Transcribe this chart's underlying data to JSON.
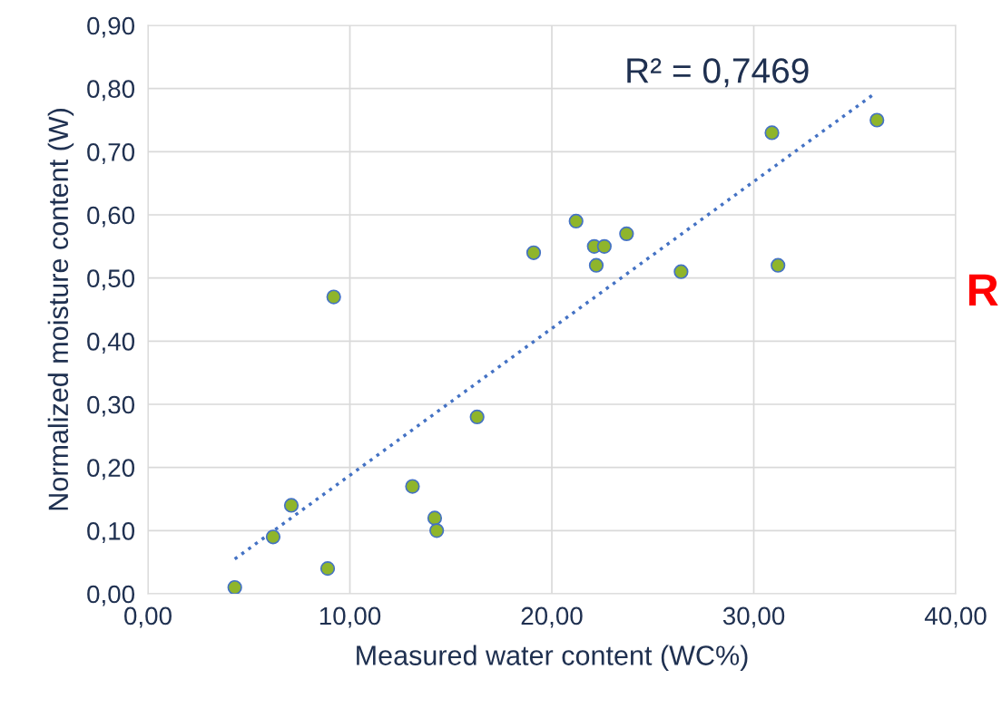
{
  "chart_data": {
    "type": "scatter",
    "xlabel": "Measured water content (WC%)",
    "ylabel": "Normalized moisture content (W)",
    "annotations": [
      "R² = 0,7469",
      "R"
    ],
    "series": [
      {
        "color": "#8fb52b",
        "x": [
          4.3,
          6.2,
          7.1,
          8.9,
          9.2,
          13.1,
          14.2,
          14.3,
          16.3,
          19.1,
          21.2,
          22.1,
          22.2,
          22.6,
          23.7,
          26.4,
          30.9,
          31.2,
          36.1
        ],
        "values": [
          0.01,
          0.09,
          0.14,
          0.04,
          0.47,
          0.17,
          0.12,
          0.1,
          0.28,
          0.54,
          0.59,
          0.55,
          0.52,
          0.55,
          0.57,
          0.51,
          0.73,
          0.52,
          0.75
        ],
        "marker": "circle"
      },
      {
        "type": "line",
        "color": "#4472c4",
        "x": [
          4.3,
          35.9
        ],
        "values": [
          0.055,
          0.79
        ],
        "line_style": "dotted",
        "marker": "none"
      }
    ],
    "xlim": [
      0,
      40
    ],
    "ylim": [
      0,
      0.9
    ],
    "xticks": [
      {
        "value": 0,
        "label": "0,00"
      },
      {
        "value": 10,
        "label": "10,00"
      },
      {
        "value": 20,
        "label": "20,00"
      },
      {
        "value": 30,
        "label": "30,00"
      },
      {
        "value": 40,
        "label": "40,00"
      }
    ],
    "yticks": [
      {
        "value": 0,
        "label": "0,00"
      },
      {
        "value": 0.1,
        "label": "0,10"
      },
      {
        "value": 0.2,
        "label": "0,20"
      },
      {
        "value": 0.3,
        "label": "0,30"
      },
      {
        "value": 0.4,
        "label": "0,40"
      },
      {
        "value": 0.5,
        "label": "0,50"
      },
      {
        "value": 0.6,
        "label": "0,60"
      },
      {
        "value": 0.7,
        "label": "0,70"
      },
      {
        "value": 0.8,
        "label": "0,80"
      },
      {
        "value": 0.9,
        "label": "0,90"
      }
    ],
    "grid": true
  }
}
